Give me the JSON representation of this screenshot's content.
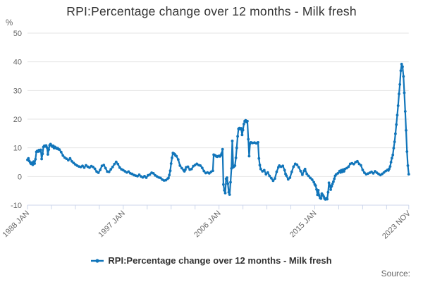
{
  "source_label": "Source:",
  "colors": {
    "series": "#1175ba",
    "gridline": "#e6e6e6",
    "axis_line": "#ccd6eb",
    "axis_label": "#666666",
    "title_text": "#333333",
    "legend_text": "#333333",
    "source_text": "#666666",
    "background": "#ffffff"
  },
  "chart_data": {
    "type": "line",
    "title": "RPI:Percentage change over 12 months - Milk fresh",
    "ylabel": "%",
    "xlabel": "",
    "ylim": [
      -10,
      50
    ],
    "y_ticks": [
      50,
      40,
      30,
      20,
      10,
      0,
      -10
    ],
    "grid": "horizontal-only",
    "legend": "RPI:Percentage change over 12 months - Milk fresh",
    "legend_position": "bottom-center",
    "x_unit": "months since 1988 JAN (0 = 1988 JAN, 430 = 2023 NOV)",
    "xlim": [
      0,
      430
    ],
    "x_tick_months": [
      0,
      27,
      54,
      81,
      108,
      135,
      162,
      189,
      216,
      243,
      270,
      297,
      324,
      351,
      378,
      405,
      430
    ],
    "x_tick_labels": [
      {
        "month": 0,
        "text": "1988 JAN"
      },
      {
        "month": 108,
        "text": "1997 JAN"
      },
      {
        "month": 216,
        "text": "2006 JAN"
      },
      {
        "month": 324,
        "text": "2015 JAN"
      },
      {
        "month": 430,
        "text": "2023 NOV"
      }
    ],
    "series": [
      {
        "name": "RPI:Percentage change over 12 months - Milk fresh",
        "color": "#1175ba",
        "markers": true,
        "points": [
          [
            0,
            5.8
          ],
          [
            1,
            6.3
          ],
          [
            2,
            5.4
          ],
          [
            3,
            4.9
          ],
          [
            4,
            4.4
          ],
          [
            5,
            4.8
          ],
          [
            6,
            4.1
          ],
          [
            7,
            5.2
          ],
          [
            8,
            4.5
          ],
          [
            9,
            6.0
          ],
          [
            10,
            8.6
          ],
          [
            11,
            8.9
          ],
          [
            12,
            8.7
          ],
          [
            13,
            9.2
          ],
          [
            14,
            8.8
          ],
          [
            15,
            9.3
          ],
          [
            16,
            6.1
          ],
          [
            17,
            7.9
          ],
          [
            18,
            10.3
          ],
          [
            19,
            10.7
          ],
          [
            20,
            10.5
          ],
          [
            21,
            10.8
          ],
          [
            22,
            10.1
          ],
          [
            23,
            7.7
          ],
          [
            24,
            9.4
          ],
          [
            25,
            10.9
          ],
          [
            26,
            11.3
          ],
          [
            27,
            10.8
          ],
          [
            28,
            10.4
          ],
          [
            29,
            10.7
          ],
          [
            30,
            9.9
          ],
          [
            31,
            10.3
          ],
          [
            32,
            10.0
          ],
          [
            33,
            9.7
          ],
          [
            34,
            9.9
          ],
          [
            35,
            9.5
          ],
          [
            36,
            9.4
          ],
          [
            38,
            8.5
          ],
          [
            40,
            7.3
          ],
          [
            42,
            6.6
          ],
          [
            44,
            6.2
          ],
          [
            46,
            5.7
          ],
          [
            48,
            6.3
          ],
          [
            50,
            5.3
          ],
          [
            52,
            4.7
          ],
          [
            54,
            4.2
          ],
          [
            56,
            3.8
          ],
          [
            58,
            3.5
          ],
          [
            60,
            3.3
          ],
          [
            62,
            3.7
          ],
          [
            64,
            3.1
          ],
          [
            66,
            3.9
          ],
          [
            68,
            3.4
          ],
          [
            70,
            3.1
          ],
          [
            72,
            3.6
          ],
          [
            74,
            3.3
          ],
          [
            76,
            2.7
          ],
          [
            78,
            1.7
          ],
          [
            80,
            1.3
          ],
          [
            82,
            2.3
          ],
          [
            84,
            3.7
          ],
          [
            86,
            4.0
          ],
          [
            88,
            2.9
          ],
          [
            90,
            1.7
          ],
          [
            92,
            1.6
          ],
          [
            94,
            2.5
          ],
          [
            96,
            3.3
          ],
          [
            98,
            4.3
          ],
          [
            100,
            5.1
          ],
          [
            102,
            4.3
          ],
          [
            104,
            3.1
          ],
          [
            106,
            2.5
          ],
          [
            108,
            2.2
          ],
          [
            110,
            1.8
          ],
          [
            112,
            1.4
          ],
          [
            114,
            1.7
          ],
          [
            116,
            1.1
          ],
          [
            118,
            0.9
          ],
          [
            120,
            0.5
          ],
          [
            122,
            0.3
          ],
          [
            124,
            0.1
          ],
          [
            126,
            0.6
          ],
          [
            128,
            0.0
          ],
          [
            130,
            -0.3
          ],
          [
            132,
            0.1
          ],
          [
            134,
            -0.4
          ],
          [
            136,
            0.4
          ],
          [
            138,
            0.7
          ],
          [
            140,
            1.3
          ],
          [
            142,
            1.1
          ],
          [
            144,
            0.4
          ],
          [
            146,
            0.0
          ],
          [
            148,
            -0.3
          ],
          [
            150,
            -0.5
          ],
          [
            152,
            -1.1
          ],
          [
            154,
            -1.4
          ],
          [
            156,
            -1.3
          ],
          [
            158,
            -0.8
          ],
          [
            159,
            -0.5
          ],
          [
            160,
            0.5
          ],
          [
            161,
            2.0
          ],
          [
            162,
            4.5
          ],
          [
            163,
            6.5
          ],
          [
            164,
            8.2
          ],
          [
            165,
            8.0
          ],
          [
            166,
            7.8
          ],
          [
            167,
            7.3
          ],
          [
            168,
            7.1
          ],
          [
            170,
            5.9
          ],
          [
            172,
            3.8
          ],
          [
            174,
            2.9
          ],
          [
            176,
            2.2
          ],
          [
            177,
            1.8
          ],
          [
            178,
            2.4
          ],
          [
            179,
            3.2
          ],
          [
            181,
            3.4
          ],
          [
            183,
            2.4
          ],
          [
            185,
            2.6
          ],
          [
            187,
            3.6
          ],
          [
            189,
            4.0
          ],
          [
            191,
            4.4
          ],
          [
            193,
            4.0
          ],
          [
            195,
            3.8
          ],
          [
            197,
            3.0
          ],
          [
            199,
            1.9
          ],
          [
            201,
            1.2
          ],
          [
            203,
            1.4
          ],
          [
            205,
            1.1
          ],
          [
            207,
            1.6
          ],
          [
            209,
            2.0
          ],
          [
            210,
            7.6
          ],
          [
            211,
            7.4
          ],
          [
            212,
            7.3
          ],
          [
            213,
            7.0
          ],
          [
            214,
            6.9
          ],
          [
            215,
            7.1
          ],
          [
            216,
            7.2
          ],
          [
            217,
            7.0
          ],
          [
            218,
            7.4
          ],
          [
            219,
            8.0
          ],
          [
            220,
            9.5
          ],
          [
            221,
            -2.8
          ],
          [
            222,
            -4.8
          ],
          [
            223,
            -5.8
          ],
          [
            224,
            -0.8
          ],
          [
            225,
            -0.4
          ],
          [
            226,
            -2.5
          ],
          [
            227,
            -5.5
          ],
          [
            228,
            -6.3
          ],
          [
            229,
            -2.0
          ],
          [
            230,
            2.8
          ],
          [
            231,
            12.4
          ],
          [
            232,
            3.2
          ],
          [
            233,
            3.5
          ],
          [
            234,
            3.8
          ],
          [
            235,
            6.5
          ],
          [
            236,
            10.0
          ],
          [
            237,
            14.0
          ],
          [
            238,
            16.6
          ],
          [
            239,
            16.9
          ],
          [
            240,
            16.5
          ],
          [
            241,
            16.8
          ],
          [
            242,
            14.5
          ],
          [
            243,
            16.2
          ],
          [
            244,
            18.3
          ],
          [
            245,
            19.3
          ],
          [
            246,
            19.6
          ],
          [
            247,
            19.0
          ],
          [
            248,
            19.3
          ],
          [
            249,
            13.0
          ],
          [
            250,
            7.1
          ],
          [
            251,
            11.5
          ],
          [
            252,
            11.9
          ],
          [
            254,
            11.7
          ],
          [
            256,
            11.8
          ],
          [
            258,
            11.6
          ],
          [
            260,
            11.9
          ],
          [
            261,
            6.3
          ],
          [
            262,
            4.0
          ],
          [
            263,
            2.6
          ],
          [
            265,
            1.8
          ],
          [
            267,
            2.2
          ],
          [
            269,
            0.8
          ],
          [
            271,
            1.4
          ],
          [
            273,
            0.2
          ],
          [
            275,
            -0.6
          ],
          [
            277,
            -1.5
          ],
          [
            279,
            -0.7
          ],
          [
            281,
            1.6
          ],
          [
            283,
            3.2
          ],
          [
            284,
            3.8
          ],
          [
            286,
            3.4
          ],
          [
            288,
            3.7
          ],
          [
            290,
            2.2
          ],
          [
            291,
            0.9
          ],
          [
            292,
            0.3
          ],
          [
            294,
            -1.0
          ],
          [
            296,
            -0.4
          ],
          [
            298,
            1.6
          ],
          [
            300,
            3.4
          ],
          [
            302,
            4.4
          ],
          [
            304,
            4.1
          ],
          [
            306,
            3.2
          ],
          [
            308,
            1.9
          ],
          [
            310,
            0.6
          ],
          [
            312,
            2.0
          ],
          [
            313,
            2.6
          ],
          [
            315,
            0.9
          ],
          [
            317,
            0.2
          ],
          [
            319,
            -0.5
          ],
          [
            321,
            -1.1
          ],
          [
            323,
            -2.0
          ],
          [
            324,
            -2.8
          ],
          [
            325,
            -3.2
          ],
          [
            326,
            -4.5
          ],
          [
            327,
            -6.4
          ],
          [
            328,
            -4.8
          ],
          [
            329,
            -6.6
          ],
          [
            330,
            -7.5
          ],
          [
            331,
            -7.7
          ],
          [
            332,
            -6.0
          ],
          [
            333,
            -6.4
          ],
          [
            334,
            -7.0
          ],
          [
            335,
            -7.7
          ],
          [
            336,
            -8.0
          ],
          [
            337,
            -7.6
          ],
          [
            338,
            -7.9
          ],
          [
            339,
            -5.5
          ],
          [
            340,
            -2.2
          ],
          [
            341,
            -3.2
          ],
          [
            342,
            -4.6
          ],
          [
            343,
            -3.4
          ],
          [
            344,
            -2.6
          ],
          [
            345,
            -1.8
          ],
          [
            346,
            -0.8
          ],
          [
            347,
            0.2
          ],
          [
            348,
            0.7
          ],
          [
            350,
            1.1
          ],
          [
            352,
            1.9
          ],
          [
            353,
            1.4
          ],
          [
            354,
            2.2
          ],
          [
            355,
            1.6
          ],
          [
            356,
            2.4
          ],
          [
            357,
            1.8
          ],
          [
            358,
            2.6
          ],
          [
            360,
            2.9
          ],
          [
            362,
            3.4
          ],
          [
            364,
            4.4
          ],
          [
            366,
            4.6
          ],
          [
            368,
            4.3
          ],
          [
            370,
            5.0
          ],
          [
            372,
            5.3
          ],
          [
            374,
            4.4
          ],
          [
            376,
            3.9
          ],
          [
            378,
            2.3
          ],
          [
            380,
            1.3
          ],
          [
            382,
            0.8
          ],
          [
            384,
            1.0
          ],
          [
            386,
            1.3
          ],
          [
            388,
            1.6
          ],
          [
            390,
            1.1
          ],
          [
            392,
            1.8
          ],
          [
            394,
            1.3
          ],
          [
            396,
            0.9
          ],
          [
            398,
            0.5
          ],
          [
            400,
            0.9
          ],
          [
            402,
            1.4
          ],
          [
            404,
            1.9
          ],
          [
            406,
            2.3
          ],
          [
            407,
            2.1
          ],
          [
            408,
            2.7
          ],
          [
            409,
            3.5
          ],
          [
            410,
            5.0
          ],
          [
            411,
            6.4
          ],
          [
            412,
            7.5
          ],
          [
            413,
            9.9
          ],
          [
            414,
            12.1
          ],
          [
            415,
            14.9
          ],
          [
            416,
            18.1
          ],
          [
            417,
            21.4
          ],
          [
            418,
            24.7
          ],
          [
            419,
            28.8
          ],
          [
            420,
            32.1
          ],
          [
            421,
            36.9
          ],
          [
            422,
            39.2
          ],
          [
            423,
            38.3
          ],
          [
            424,
            34.9
          ],
          [
            425,
            29.2
          ],
          [
            426,
            22.7
          ],
          [
            427,
            16.1
          ],
          [
            428,
            8.7
          ],
          [
            429,
            3.8
          ],
          [
            430,
            0.8
          ]
        ]
      }
    ]
  }
}
